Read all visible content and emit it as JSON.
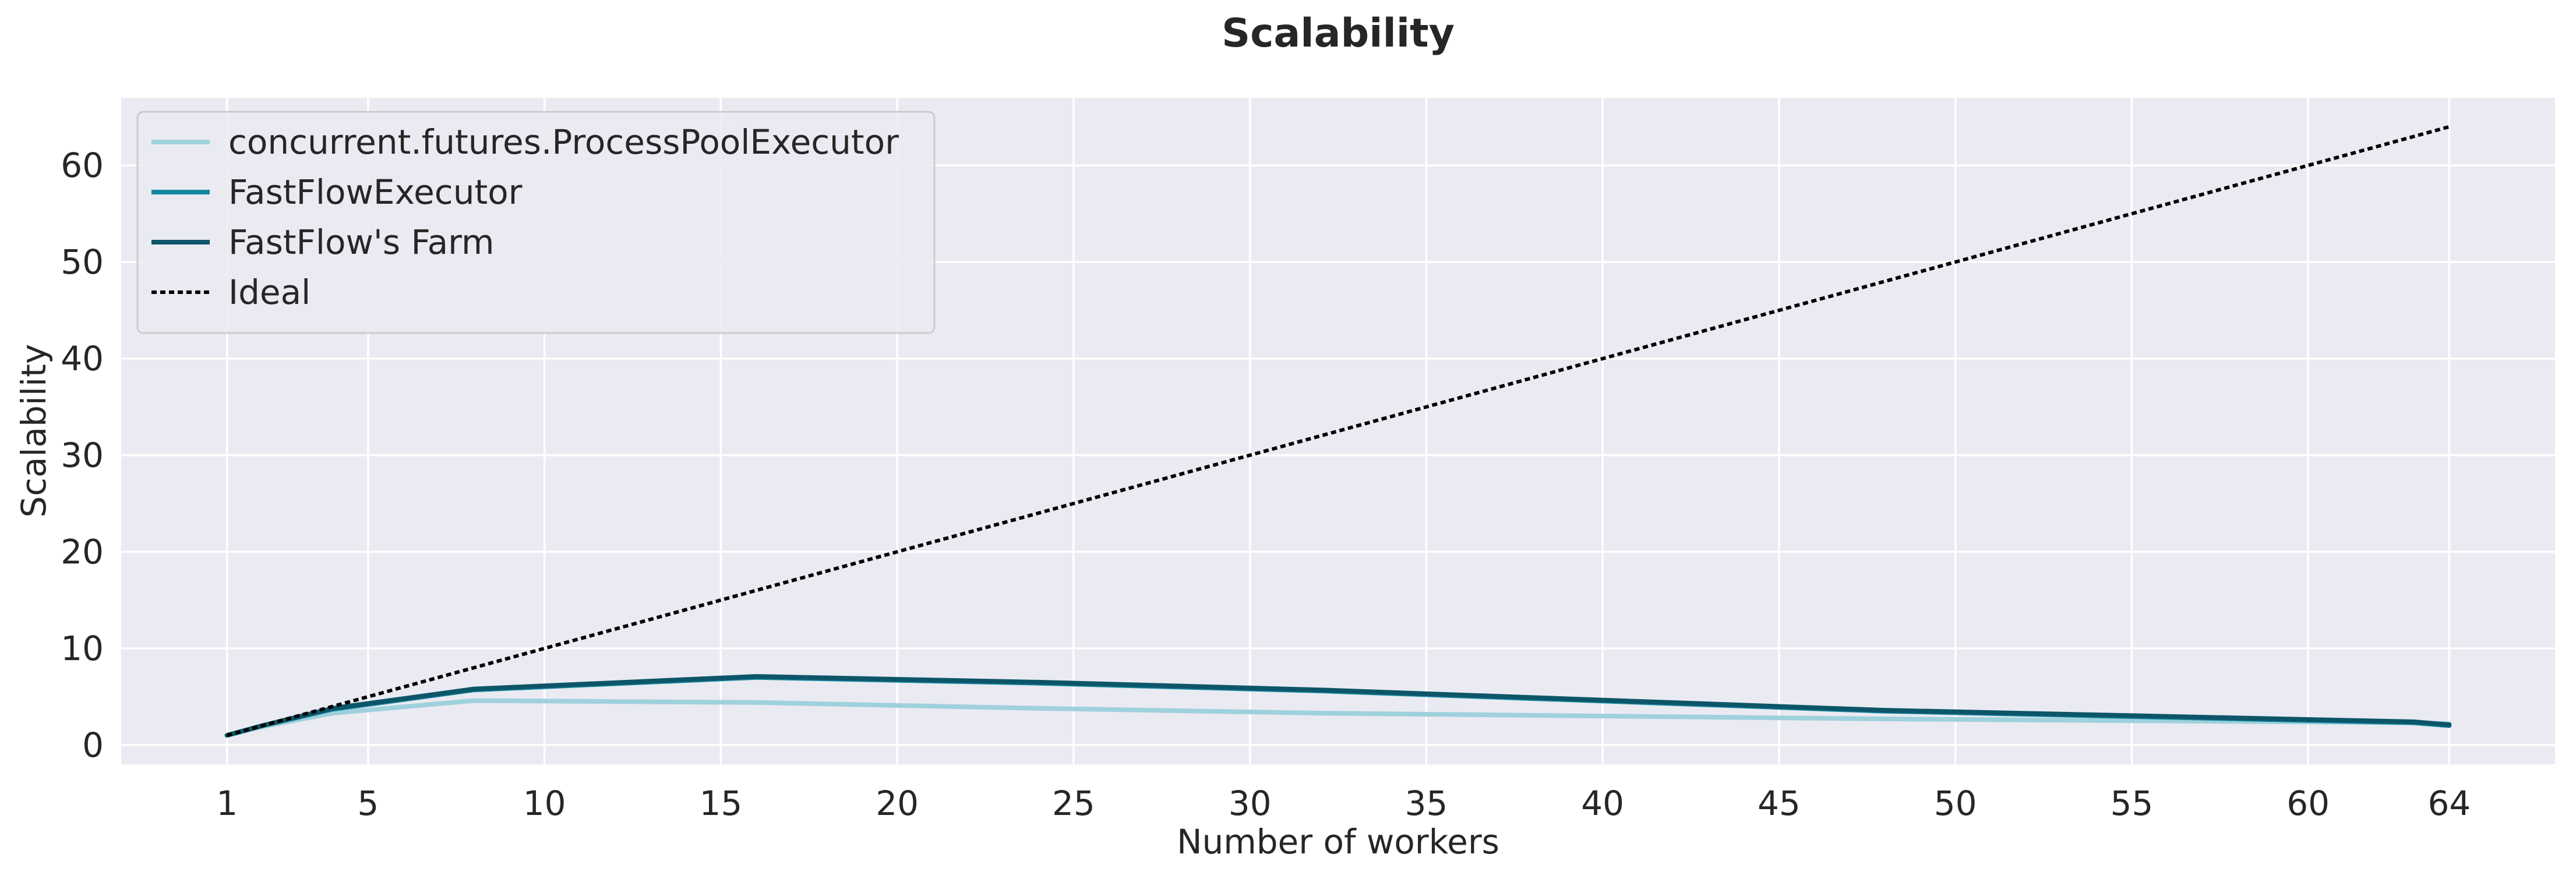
{
  "chart_data": {
    "type": "line",
    "title": "Scalability",
    "xlabel": "Number of workers",
    "ylabel": "Scalability",
    "xlim": [
      -2,
      67
    ],
    "ylim": [
      -2,
      67
    ],
    "xticks": [
      1,
      5,
      10,
      15,
      20,
      25,
      30,
      35,
      40,
      45,
      50,
      55,
      60,
      64
    ],
    "yticks": [
      0,
      10,
      20,
      30,
      40,
      50,
      60
    ],
    "grid": true,
    "background": "#eaeaf2",
    "legend_position": "top-left",
    "series": [
      {
        "name": "concurrent.futures.ProcessPoolExecutor",
        "color": "#9ed1dc",
        "dash": "solid",
        "x": [
          1,
          2,
          4,
          8,
          16,
          24,
          32,
          48,
          63,
          64
        ],
        "y": [
          1,
          1.9,
          3.3,
          4.6,
          4.4,
          3.8,
          3.3,
          2.7,
          2.3,
          2.2
        ]
      },
      {
        "name": "FastFlowExecutor",
        "color": "#13879f",
        "dash": "solid",
        "x": [
          1,
          2,
          4,
          8,
          16,
          24,
          32,
          48,
          63,
          64
        ],
        "y": [
          1,
          2.0,
          3.7,
          5.7,
          7.0,
          6.4,
          5.6,
          3.5,
          2.3,
          2.0
        ]
      },
      {
        "name": "FastFlow's Farm",
        "color": "#0d5568",
        "dash": "solid",
        "x": [
          1,
          2,
          4,
          8,
          16,
          24,
          32,
          48,
          63,
          64
        ],
        "y": [
          1,
          2.0,
          3.8,
          5.8,
          7.1,
          6.5,
          5.7,
          3.6,
          2.4,
          2.1
        ]
      },
      {
        "name": "Ideal",
        "color": "#000000",
        "dash": "dotted",
        "x": [
          1,
          64
        ],
        "y": [
          1,
          64
        ]
      }
    ]
  }
}
